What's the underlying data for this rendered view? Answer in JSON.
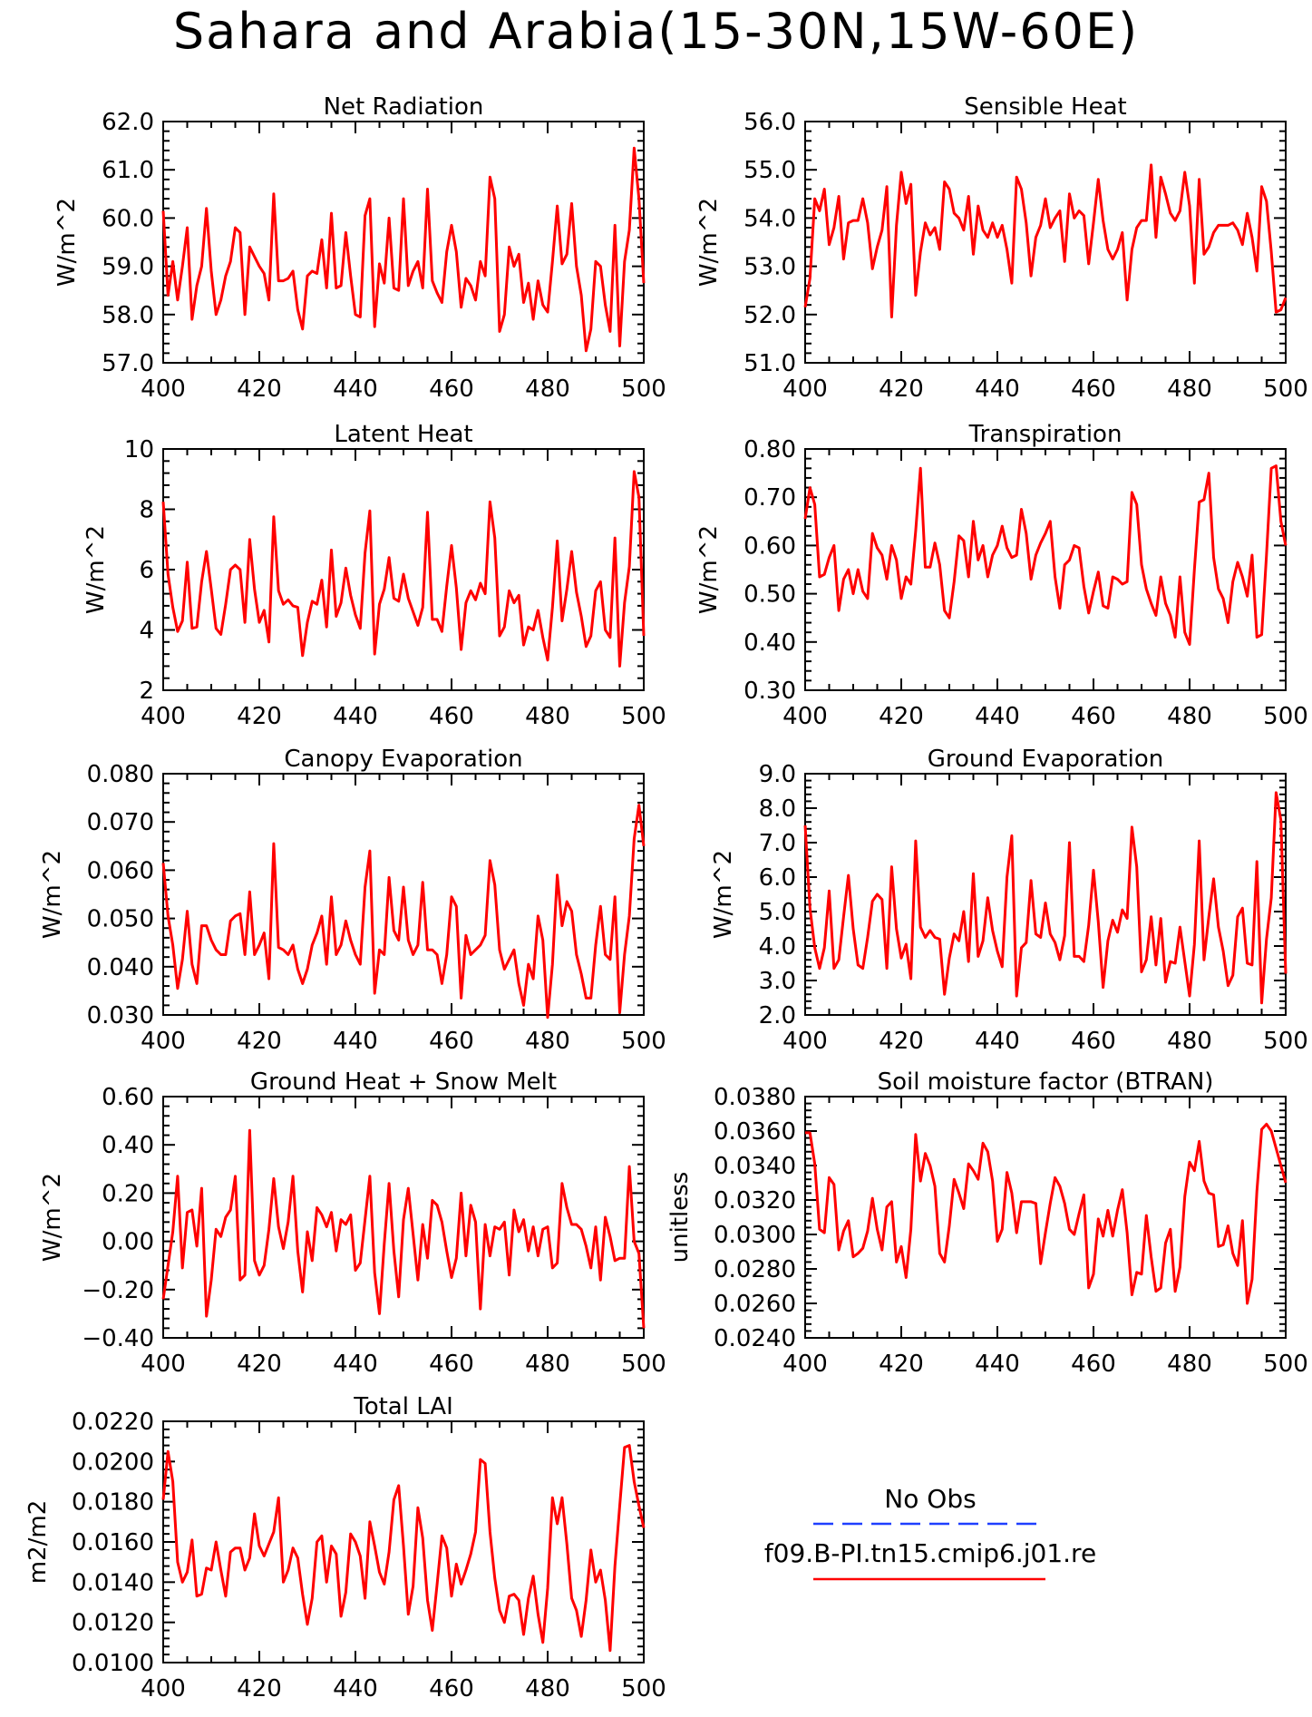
{
  "title": "Sahara and Arabia(15-30N,15W-60E)",
  "line_color": "#ff0000",
  "obs_color": "#1f3fff",
  "legend": {
    "obs_label": "No Obs",
    "model_label": "f09.B-PI.tn15.cmip6.j01.re"
  },
  "chart_data": [
    {
      "type": "line",
      "title": "Net Radiation",
      "ylabel": "W/m^2",
      "xlim": [
        400,
        500
      ],
      "xticks": [
        "400",
        "420",
        "440",
        "460",
        "480",
        "500"
      ],
      "ylim": [
        57.0,
        62.0
      ],
      "yticks": [
        "57.0",
        "58.0",
        "59.0",
        "60.0",
        "61.0",
        "62.0"
      ],
      "y": [
        60.15,
        58.4,
        59.1,
        58.3,
        59.0,
        59.8,
        57.9,
        58.6,
        59.0,
        60.2,
        58.9,
        58.0,
        58.3,
        58.8,
        59.1,
        59.8,
        59.7,
        58.0,
        59.4,
        59.2,
        59.0,
        58.85,
        58.3,
        60.5,
        58.7,
        58.7,
        58.75,
        58.9,
        58.1,
        57.7,
        58.8,
        58.9,
        58.85,
        59.55,
        58.55,
        60.1,
        58.55,
        58.6,
        59.7,
        58.8,
        58.0,
        57.95,
        60.05,
        60.4,
        57.75,
        59.05,
        58.65,
        60.0,
        58.55,
        58.5,
        60.4,
        58.6,
        58.9,
        59.1,
        58.55,
        60.6,
        58.7,
        58.45,
        58.25,
        59.3,
        59.85,
        59.3,
        58.15,
        58.75,
        58.6,
        58.3,
        59.1,
        58.8,
        60.85,
        60.4,
        57.65,
        58.0,
        59.4,
        59.0,
        59.25,
        58.25,
        58.65,
        57.9,
        58.7,
        58.2,
        58.05,
        59.1,
        60.25,
        59.05,
        59.25,
        60.3,
        59.0,
        58.4,
        57.25,
        57.7,
        59.1,
        59.0,
        58.2,
        57.65,
        59.85,
        57.35,
        59.1,
        59.75,
        61.45,
        60.4,
        58.65
      ]
    },
    {
      "type": "line",
      "title": "Sensible Heat",
      "ylabel": "W/m^2",
      "xlim": [
        400,
        500
      ],
      "xticks": [
        "400",
        "420",
        "440",
        "460",
        "480",
        "500"
      ],
      "ylim": [
        51.0,
        56.0
      ],
      "yticks": [
        "51.0",
        "52.0",
        "53.0",
        "54.0",
        "55.0",
        "56.0"
      ],
      "y": [
        52.15,
        52.75,
        54.4,
        54.15,
        54.6,
        53.45,
        53.8,
        54.45,
        53.15,
        53.9,
        53.95,
        53.95,
        54.4,
        53.9,
        52.95,
        53.4,
        53.75,
        54.65,
        51.95,
        53.85,
        54.95,
        54.3,
        54.7,
        52.4,
        53.3,
        53.9,
        53.65,
        53.8,
        53.35,
        54.75,
        54.6,
        54.1,
        54.0,
        53.75,
        54.45,
        53.25,
        54.25,
        53.75,
        53.6,
        53.9,
        53.6,
        53.85,
        53.35,
        52.65,
        54.85,
        54.6,
        53.9,
        52.8,
        53.6,
        53.85,
        54.4,
        53.8,
        54.0,
        54.15,
        53.1,
        54.5,
        54.0,
        54.15,
        54.05,
        53.05,
        53.9,
        54.8,
        53.95,
        53.35,
        53.15,
        53.35,
        53.7,
        52.3,
        53.35,
        53.8,
        53.95,
        53.95,
        55.1,
        53.6,
        54.85,
        54.5,
        54.1,
        53.95,
        54.15,
        54.95,
        54.25,
        52.65,
        54.8,
        53.25,
        53.4,
        53.7,
        53.85,
        53.85,
        53.85,
        53.9,
        53.75,
        53.45,
        54.1,
        53.6,
        52.9,
        54.65,
        54.35,
        53.3,
        52.05,
        52.1,
        52.35
      ]
    },
    {
      "type": "line",
      "title": "Latent Heat",
      "ylabel": "W/m^2",
      "xlim": [
        400,
        500
      ],
      "xticks": [
        "400",
        "420",
        "440",
        "460",
        "480",
        "500"
      ],
      "ylim": [
        2,
        10
      ],
      "yticks": [
        "2",
        "4",
        "6",
        "8",
        "10"
      ],
      "y": [
        8.25,
        5.85,
        4.75,
        3.95,
        4.3,
        6.25,
        4.05,
        4.1,
        5.6,
        6.6,
        5.35,
        4.05,
        3.85,
        4.85,
        6.0,
        6.15,
        6.0,
        4.25,
        7.0,
        5.35,
        4.25,
        4.65,
        3.6,
        7.75,
        5.3,
        4.85,
        5.0,
        4.8,
        4.75,
        3.15,
        4.25,
        4.95,
        4.85,
        5.65,
        4.1,
        6.65,
        4.45,
        4.9,
        6.05,
        5.15,
        4.5,
        4.05,
        6.55,
        7.95,
        3.2,
        4.85,
        5.35,
        6.4,
        5.05,
        4.95,
        5.85,
        5.05,
        4.6,
        4.15,
        4.75,
        7.9,
        4.35,
        4.35,
        3.95,
        5.45,
        6.8,
        5.4,
        3.35,
        4.9,
        5.3,
        5.0,
        5.55,
        5.2,
        8.25,
        7.05,
        3.8,
        4.1,
        5.3,
        4.9,
        5.15,
        3.5,
        4.1,
        4.0,
        4.65,
        3.75,
        3.0,
        4.75,
        6.95,
        4.3,
        5.35,
        6.6,
        5.25,
        4.45,
        3.45,
        3.8,
        5.3,
        5.6,
        4.0,
        3.75,
        7.05,
        2.8,
        4.9,
        6.1,
        9.25,
        8.4,
        3.8
      ]
    },
    {
      "type": "line",
      "title": "Transpiration",
      "ylabel": "W/m^2",
      "xlim": [
        400,
        500
      ],
      "xticks": [
        "400",
        "420",
        "440",
        "460",
        "480",
        "500"
      ],
      "ylim": [
        0.3,
        0.8
      ],
      "yticks": [
        "0.30",
        "0.40",
        "0.50",
        "0.60",
        "0.70",
        "0.80"
      ],
      "y": [
        0.655,
        0.72,
        0.685,
        0.535,
        0.54,
        0.575,
        0.6,
        0.465,
        0.53,
        0.55,
        0.5,
        0.55,
        0.505,
        0.49,
        0.625,
        0.595,
        0.58,
        0.53,
        0.6,
        0.57,
        0.49,
        0.535,
        0.52,
        0.63,
        0.76,
        0.555,
        0.555,
        0.605,
        0.56,
        0.465,
        0.45,
        0.525,
        0.62,
        0.61,
        0.535,
        0.65,
        0.57,
        0.6,
        0.535,
        0.58,
        0.6,
        0.64,
        0.595,
        0.575,
        0.58,
        0.675,
        0.625,
        0.53,
        0.58,
        0.605,
        0.625,
        0.65,
        0.535,
        0.47,
        0.56,
        0.57,
        0.6,
        0.595,
        0.515,
        0.46,
        0.505,
        0.545,
        0.475,
        0.47,
        0.535,
        0.53,
        0.52,
        0.525,
        0.71,
        0.685,
        0.56,
        0.51,
        0.48,
        0.455,
        0.535,
        0.48,
        0.455,
        0.41,
        0.535,
        0.42,
        0.395,
        0.55,
        0.69,
        0.695,
        0.75,
        0.575,
        0.51,
        0.49,
        0.44,
        0.525,
        0.565,
        0.535,
        0.495,
        0.58,
        0.41,
        0.415,
        0.58,
        0.76,
        0.765,
        0.65,
        0.6
      ]
    },
    {
      "type": "line",
      "title": "Canopy Evaporation",
      "ylabel": "W/m^2",
      "xlim": [
        400,
        500
      ],
      "xticks": [
        "400",
        "420",
        "440",
        "460",
        "480",
        "500"
      ],
      "ylim": [
        0.03,
        0.08
      ],
      "yticks": [
        "0.030",
        "0.040",
        "0.050",
        "0.060",
        "0.070",
        "0.080"
      ],
      "y": [
        0.0615,
        0.0505,
        0.0445,
        0.0355,
        0.0415,
        0.0515,
        0.0405,
        0.0365,
        0.0485,
        0.0485,
        0.0455,
        0.0435,
        0.0425,
        0.0425,
        0.0495,
        0.0505,
        0.051,
        0.0425,
        0.0555,
        0.0425,
        0.0445,
        0.047,
        0.0375,
        0.0655,
        0.044,
        0.0435,
        0.0425,
        0.0445,
        0.0395,
        0.0365,
        0.0395,
        0.0445,
        0.047,
        0.0505,
        0.0405,
        0.0545,
        0.0425,
        0.0445,
        0.0495,
        0.0455,
        0.0425,
        0.0405,
        0.0565,
        0.064,
        0.0345,
        0.0435,
        0.0425,
        0.0585,
        0.0475,
        0.0455,
        0.0565,
        0.0455,
        0.0425,
        0.0445,
        0.0575,
        0.0435,
        0.0435,
        0.0425,
        0.0365,
        0.0425,
        0.0545,
        0.0525,
        0.0335,
        0.0465,
        0.0425,
        0.0435,
        0.0445,
        0.0465,
        0.062,
        0.057,
        0.0435,
        0.0395,
        0.0415,
        0.0435,
        0.0365,
        0.032,
        0.0405,
        0.0375,
        0.0505,
        0.0455,
        0.0295,
        0.0405,
        0.059,
        0.0485,
        0.0535,
        0.0515,
        0.0425,
        0.0385,
        0.0335,
        0.0335,
        0.0445,
        0.0525,
        0.0425,
        0.0415,
        0.0545,
        0.0305,
        0.0425,
        0.0505,
        0.0665,
        0.0735,
        0.065
      ]
    },
    {
      "type": "line",
      "title": "Ground Evaporation",
      "ylabel": "W/m^2",
      "xlim": [
        400,
        500
      ],
      "xticks": [
        "400",
        "420",
        "440",
        "460",
        "480",
        "500"
      ],
      "ylim": [
        2.0,
        9.0
      ],
      "yticks": [
        "2.0",
        "3.0",
        "4.0",
        "5.0",
        "6.0",
        "7.0",
        "8.0",
        "9.0"
      ],
      "y": [
        7.5,
        5.1,
        3.95,
        3.35,
        3.95,
        5.6,
        3.35,
        3.6,
        4.85,
        6.05,
        4.5,
        3.45,
        3.35,
        4.25,
        5.3,
        5.5,
        5.35,
        3.35,
        6.3,
        4.5,
        3.65,
        4.05,
        3.05,
        7.05,
        4.55,
        4.25,
        4.45,
        4.25,
        4.2,
        2.6,
        3.65,
        4.35,
        4.15,
        5.0,
        3.55,
        6.1,
        3.7,
        4.15,
        5.4,
        4.45,
        3.85,
        3.4,
        6.0,
        7.2,
        2.55,
        3.95,
        4.1,
        5.9,
        4.35,
        4.25,
        5.25,
        4.35,
        4.1,
        3.6,
        4.3,
        7.0,
        3.7,
        3.7,
        3.55,
        4.6,
        6.2,
        4.7,
        2.8,
        4.15,
        4.75,
        4.4,
        5.05,
        4.8,
        7.45,
        6.3,
        3.25,
        3.6,
        4.85,
        3.45,
        4.8,
        2.95,
        3.55,
        3.5,
        4.55,
        3.55,
        2.55,
        4.05,
        7.05,
        3.6,
        4.85,
        5.95,
        4.55,
        3.85,
        2.85,
        3.15,
        4.85,
        5.1,
        3.5,
        3.45,
        6.45,
        2.35,
        4.2,
        5.4,
        8.45,
        7.65,
        3.2
      ]
    },
    {
      "type": "line",
      "title": "Ground Heat + Snow Melt",
      "ylabel": "W/m^2",
      "xlim": [
        400,
        500
      ],
      "xticks": [
        "400",
        "420",
        "440",
        "460",
        "480",
        "500"
      ],
      "ylim": [
        -0.4,
        0.6
      ],
      "yticks": [
        "-0.40",
        "-0.20",
        "0.00",
        "0.20",
        "0.40",
        "0.60"
      ],
      "y": [
        -0.24,
        -0.1,
        0.04,
        0.27,
        -0.11,
        0.12,
        0.13,
        -0.02,
        0.22,
        -0.31,
        -0.16,
        0.05,
        0.02,
        0.1,
        0.13,
        0.27,
        -0.16,
        -0.14,
        0.46,
        -0.08,
        -0.14,
        -0.1,
        0.05,
        0.26,
        0.06,
        -0.03,
        0.08,
        0.27,
        -0.04,
        -0.21,
        0.04,
        -0.08,
        0.14,
        0.11,
        0.06,
        0.12,
        -0.04,
        0.09,
        0.07,
        0.11,
        -0.12,
        -0.09,
        0.09,
        0.27,
        -0.13,
        -0.3,
        -0.01,
        0.24,
        -0.04,
        -0.23,
        0.09,
        0.22,
        0.03,
        -0.16,
        0.07,
        -0.07,
        0.17,
        0.15,
        0.08,
        -0.04,
        -0.15,
        -0.07,
        0.2,
        -0.06,
        0.15,
        0.08,
        -0.28,
        0.07,
        -0.06,
        0.06,
        0.05,
        0.08,
        -0.14,
        0.13,
        0.04,
        0.09,
        -0.04,
        0.06,
        -0.06,
        0.05,
        0.06,
        -0.11,
        -0.09,
        0.24,
        0.14,
        0.07,
        0.07,
        0.05,
        -0.02,
        -0.11,
        0.06,
        -0.16,
        0.1,
        0.02,
        -0.08,
        -0.07,
        -0.07,
        0.31,
        0.0,
        -0.05,
        -0.36
      ]
    },
    {
      "type": "line",
      "title": "Soil moisture factor (BTRAN)",
      "ylabel": "unitless",
      "xlim": [
        400,
        500
      ],
      "xticks": [
        "400",
        "420",
        "440",
        "460",
        "480",
        "500"
      ],
      "ylim": [
        0.024,
        0.038
      ],
      "yticks": [
        "0.0240",
        "0.0260",
        "0.0280",
        "0.0300",
        "0.0320",
        "0.0340",
        "0.0360",
        "0.0380"
      ],
      "y": [
        0.0359,
        0.0359,
        0.0341,
        0.0303,
        0.0301,
        0.0333,
        0.0329,
        0.0291,
        0.0302,
        0.0308,
        0.0287,
        0.0289,
        0.0292,
        0.0302,
        0.0321,
        0.0303,
        0.0291,
        0.0316,
        0.0319,
        0.0284,
        0.0293,
        0.0275,
        0.0303,
        0.0358,
        0.0331,
        0.0347,
        0.034,
        0.0328,
        0.0289,
        0.0284,
        0.0305,
        0.0332,
        0.0324,
        0.0315,
        0.0341,
        0.0337,
        0.0332,
        0.0353,
        0.0348,
        0.0331,
        0.0296,
        0.0303,
        0.0336,
        0.0324,
        0.0301,
        0.0319,
        0.0319,
        0.0319,
        0.0318,
        0.0283,
        0.0301,
        0.0318,
        0.0333,
        0.0328,
        0.0318,
        0.0303,
        0.03,
        0.0312,
        0.0323,
        0.0269,
        0.0277,
        0.0309,
        0.0299,
        0.0314,
        0.0299,
        0.0314,
        0.0326,
        0.0301,
        0.0265,
        0.0278,
        0.0277,
        0.0311,
        0.0287,
        0.0267,
        0.0269,
        0.0295,
        0.0303,
        0.0267,
        0.0281,
        0.0322,
        0.0342,
        0.0337,
        0.0354,
        0.0331,
        0.0324,
        0.0323,
        0.0293,
        0.0294,
        0.0305,
        0.0289,
        0.0282,
        0.0308,
        0.026,
        0.0274,
        0.0325,
        0.0361,
        0.0364,
        0.036,
        0.035,
        0.034,
        0.033
      ]
    },
    {
      "type": "line",
      "title": "Total LAI",
      "ylabel": "m2/m2",
      "xlim": [
        400,
        500
      ],
      "xticks": [
        "400",
        "420",
        "440",
        "460",
        "480",
        "500"
      ],
      "ylim": [
        0.01,
        0.022
      ],
      "yticks": [
        "0.0100",
        "0.0120",
        "0.0140",
        "0.0160",
        "0.0180",
        "0.0200",
        "0.0220"
      ],
      "y": [
        0.0181,
        0.0205,
        0.019,
        0.015,
        0.014,
        0.0145,
        0.0161,
        0.0133,
        0.0134,
        0.0147,
        0.0146,
        0.016,
        0.0146,
        0.0133,
        0.0155,
        0.0157,
        0.0157,
        0.0146,
        0.0152,
        0.0174,
        0.0158,
        0.0153,
        0.0159,
        0.0165,
        0.0182,
        0.014,
        0.0146,
        0.0157,
        0.0152,
        0.0134,
        0.0119,
        0.0132,
        0.016,
        0.0163,
        0.014,
        0.0158,
        0.0154,
        0.0123,
        0.0135,
        0.0164,
        0.016,
        0.0153,
        0.0132,
        0.017,
        0.0158,
        0.0145,
        0.0139,
        0.0155,
        0.0181,
        0.0188,
        0.0158,
        0.0124,
        0.0138,
        0.0177,
        0.0162,
        0.0131,
        0.0116,
        0.0139,
        0.0163,
        0.0157,
        0.0133,
        0.0149,
        0.0139,
        0.0146,
        0.0154,
        0.0165,
        0.0201,
        0.0199,
        0.0165,
        0.0142,
        0.0126,
        0.012,
        0.0133,
        0.0134,
        0.0131,
        0.0114,
        0.0132,
        0.0143,
        0.0124,
        0.011,
        0.0137,
        0.0182,
        0.0169,
        0.0182,
        0.0159,
        0.0132,
        0.0126,
        0.0113,
        0.0131,
        0.0156,
        0.014,
        0.0146,
        0.0131,
        0.0106,
        0.0148,
        0.0178,
        0.0207,
        0.0208,
        0.019,
        0.0178,
        0.0167
      ]
    }
  ]
}
